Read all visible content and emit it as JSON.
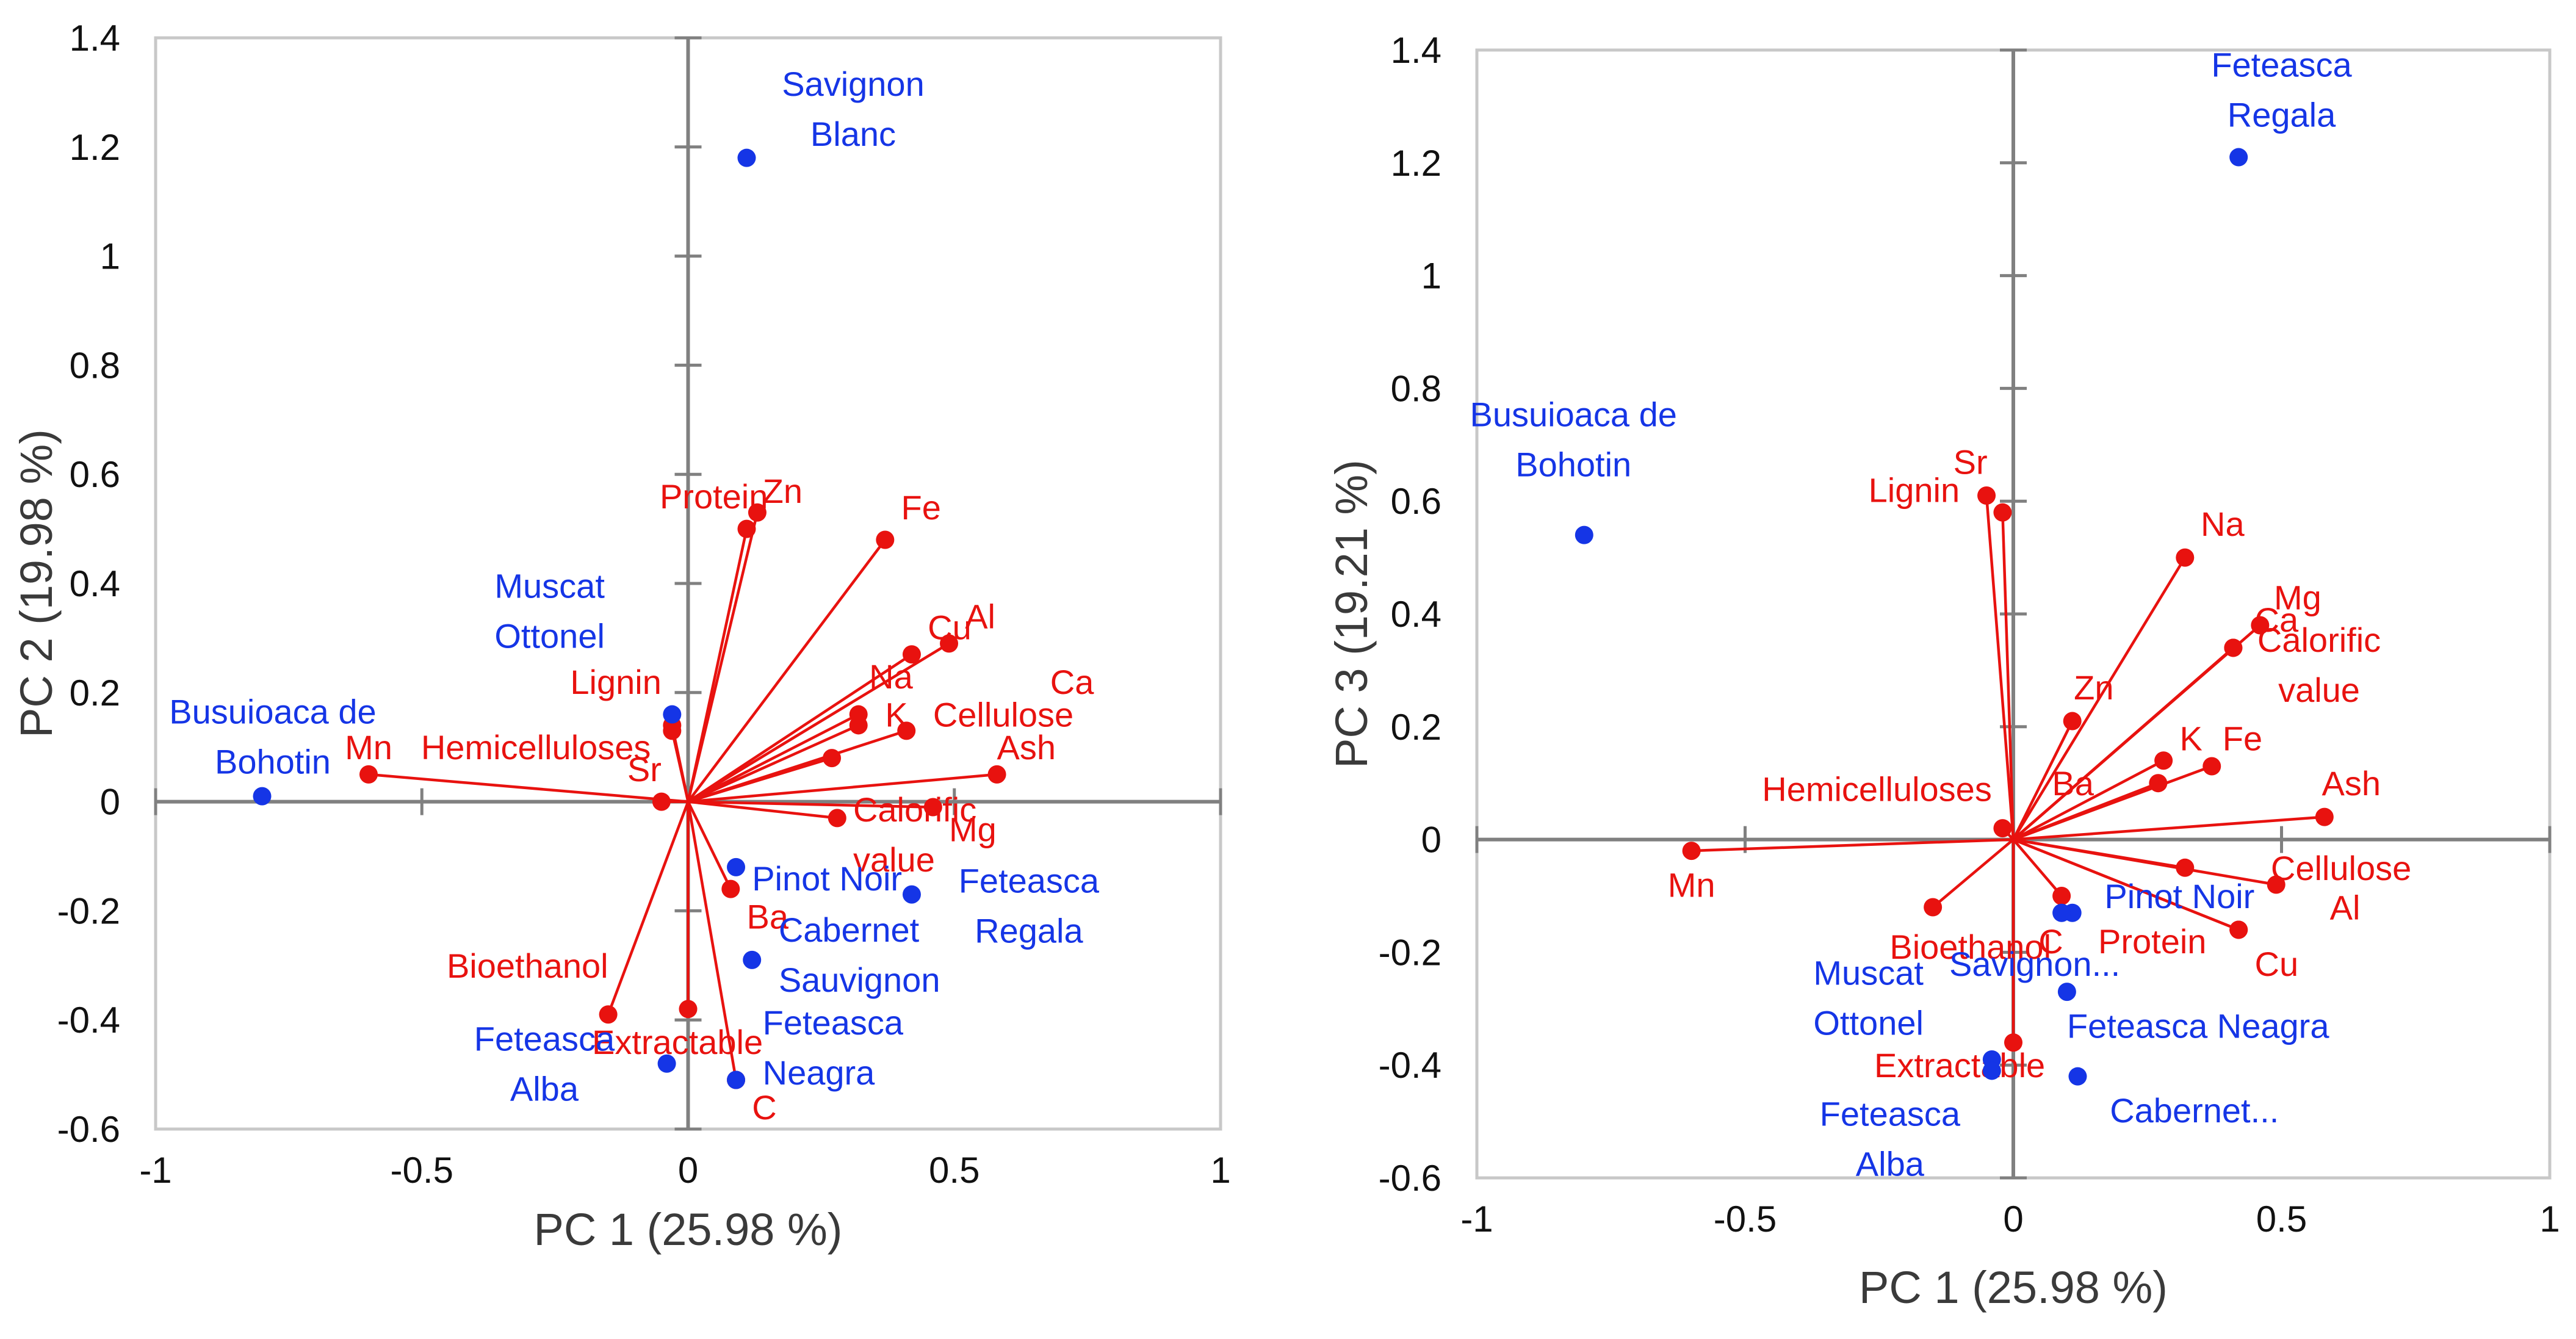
{
  "colors": {
    "variables": "#e8120f",
    "samples": "#1535e6",
    "axis": "#808080",
    "frame": "#c8c8c8"
  },
  "chart_data": [
    {
      "type": "scatter",
      "title": "",
      "xlabel": "PC 1 (25.98 %)",
      "ylabel": "PC 2 (19.98 %)",
      "xlim": [
        -1,
        1
      ],
      "ylim": [
        -0.6,
        1.4
      ],
      "xticks": [
        -1,
        -0.5,
        0,
        0.5,
        1
      ],
      "xtick_labels": [
        "-1",
        "-0.5",
        "0",
        "0.5",
        "1"
      ],
      "yticks": [
        -0.6,
        -0.4,
        -0.2,
        0,
        0.2,
        0.4,
        0.6,
        0.8,
        1,
        1.2,
        1.4
      ],
      "ytick_labels": [
        "-0.6",
        "-0.4",
        "-0.2",
        "0",
        "0.2",
        "0.4",
        "0.6",
        "0.8",
        "1",
        "1.2",
        "1.4"
      ],
      "variables": [
        {
          "name": "Protein",
          "lines": [
            "Protein"
          ],
          "x": 0.11,
          "y": 0.5,
          "label_anchor": "end",
          "label_dx": 0.04,
          "label_dy": 0.06
        },
        {
          "name": "Zn",
          "lines": [
            "Zn"
          ],
          "x": 0.13,
          "y": 0.53,
          "label_anchor": "start",
          "label_dx": 0.01,
          "label_dy": 0.04
        },
        {
          "name": "Fe",
          "lines": [
            "Fe"
          ],
          "x": 0.37,
          "y": 0.48,
          "label_anchor": "start",
          "label_dx": 0.03,
          "label_dy": 0.06
        },
        {
          "name": "Al",
          "lines": [
            "Al"
          ],
          "x": 0.49,
          "y": 0.29,
          "label_anchor": "start",
          "label_dx": 0.03,
          "label_dy": 0.05
        },
        {
          "name": "Cu",
          "lines": [
            "Cu"
          ],
          "x": 0.42,
          "y": 0.27,
          "label_anchor": "start",
          "label_dx": 0.03,
          "label_dy": 0.05
        },
        {
          "name": "Na",
          "lines": [
            "Na"
          ],
          "x": 0.32,
          "y": 0.14,
          "label_anchor": "start",
          "label_dx": 0.02,
          "label_dy": 0.09
        },
        {
          "name": "Ca",
          "lines": [
            "Ca"
          ],
          "x": 0.41,
          "y": 0.13,
          "label_anchor": "start",
          "label_dx": 0.27,
          "label_dy": 0.09
        },
        {
          "name": "Cellulose",
          "lines": [
            "Cellulose"
          ],
          "x": 0.32,
          "y": 0.16,
          "label_anchor": "start",
          "label_dx": 0.14,
          "label_dy": 0.0
        },
        {
          "name": "K",
          "lines": [
            "K"
          ],
          "x": 0.27,
          "y": 0.08,
          "label_anchor": "start",
          "label_dx": 0.1,
          "label_dy": 0.08
        },
        {
          "name": "Ash",
          "lines": [
            "Ash"
          ],
          "x": 0.58,
          "y": 0.05,
          "label_anchor": "start",
          "label_dx": 0.0,
          "label_dy": 0.05
        },
        {
          "name": "Calorific value",
          "lines": [
            "Calorific",
            "value"
          ],
          "x": 0.28,
          "y": -0.03,
          "label_anchor": "start",
          "label_dx": 0.03,
          "label_dy": -0.03
        },
        {
          "name": "Mg",
          "lines": [
            "Mg"
          ],
          "x": 0.46,
          "y": -0.01,
          "label_anchor": "start",
          "label_dx": 0.03,
          "label_dy": -0.04
        },
        {
          "name": "Ba",
          "lines": [
            "Ba"
          ],
          "x": 0.08,
          "y": -0.16,
          "label_anchor": "start",
          "label_dx": 0.03,
          "label_dy": -0.05
        },
        {
          "name": "Extractable",
          "lines": [
            "Extractable"
          ],
          "x": 0.0,
          "y": -0.38,
          "label_anchor": "middle",
          "label_dx": -0.02,
          "label_dy": -0.06
        },
        {
          "name": "C",
          "lines": [
            "C"
          ],
          "x": 0.09,
          "y": -0.51,
          "label_anchor": "start",
          "label_dx": 0.03,
          "label_dy": -0.05
        },
        {
          "name": "Bioethanol",
          "lines": [
            "Bioethanol"
          ],
          "x": -0.15,
          "y": -0.39,
          "label_anchor": "end",
          "label_dx": 0.0,
          "label_dy": 0.09
        },
        {
          "name": "Sr",
          "lines": [
            "Sr"
          ],
          "x": -0.05,
          "y": 0.0,
          "label_anchor": "end",
          "label_dx": 0.0,
          "label_dy": 0.06
        },
        {
          "name": "Hemicelluloses",
          "lines": [
            "Hemicelluloses"
          ],
          "x": -0.03,
          "y": 0.13,
          "label_anchor": "end",
          "label_dx": -0.04,
          "label_dy": -0.03
        },
        {
          "name": "Lignin",
          "lines": [
            "Lignin"
          ],
          "x": -0.03,
          "y": 0.14,
          "label_anchor": "end",
          "label_dx": -0.02,
          "label_dy": 0.08
        },
        {
          "name": "Mn",
          "lines": [
            "Mn"
          ],
          "x": -0.6,
          "y": 0.05,
          "label_anchor": "middle",
          "label_dx": 0.0,
          "label_dy": 0.05
        }
      ],
      "samples": [
        {
          "name": "Savignon Blanc",
          "lines": [
            "Savignon",
            "Blanc"
          ],
          "x": 0.11,
          "y": 1.18,
          "label_anchor": "middle",
          "label_dx": 0.2,
          "label_dy": 0.09
        },
        {
          "name": "Muscat Ottonel",
          "lines": [
            "Muscat",
            "Ottonel"
          ],
          "x": -0.03,
          "y": 0.16,
          "label_anchor": "middle",
          "label_dx": -0.23,
          "label_dy": 0.19
        },
        {
          "name": "Busuioaca de Bohotin",
          "lines": [
            "Busuioaca de",
            "Bohotin"
          ],
          "x": -0.8,
          "y": 0.01,
          "label_anchor": "middle",
          "label_dx": 0.02,
          "label_dy": 0.11
        },
        {
          "name": "Pinot Noir",
          "lines": [
            "Pinot Noir"
          ],
          "x": 0.09,
          "y": -0.12,
          "label_anchor": "start",
          "label_dx": 0.03,
          "label_dy": -0.02
        },
        {
          "name": "Cabernet Sauvignon",
          "lines": [
            "Cabernet",
            "Sauvignon"
          ],
          "x": 0.12,
          "y": -0.29,
          "label_anchor": "start",
          "label_dx": 0.05,
          "label_dy": 0.01
        },
        {
          "name": "Feteasca Regala",
          "lines": [
            "Feteasca",
            "Regala"
          ],
          "x": 0.42,
          "y": -0.17,
          "label_anchor": "middle",
          "label_dx": 0.22,
          "label_dy": -0.02
        },
        {
          "name": "Feteasca Neagra",
          "lines": [
            "Feteasca",
            "Neagra"
          ],
          "x": 0.09,
          "y": -0.51,
          "label_anchor": "start",
          "label_dx": 0.05,
          "label_dy": 0.06
        },
        {
          "name": "Feteasca Alba",
          "lines": [
            "Feteasca",
            "Alba"
          ],
          "x": -0.04,
          "y": -0.48,
          "label_anchor": "middle",
          "label_dx": -0.23,
          "label_dy": 0.0
        }
      ]
    },
    {
      "type": "scatter",
      "title": "",
      "xlabel": "PC 1 (25.98 %)",
      "ylabel": "PC 3 (19.21 %)",
      "xlim": [
        -1,
        1
      ],
      "ylim": [
        -0.6,
        1.4
      ],
      "xticks": [
        -1,
        -0.5,
        0,
        0.5,
        1
      ],
      "xtick_labels": [
        "-1",
        "-0.5",
        "0",
        "0.5",
        "1"
      ],
      "yticks": [
        -0.6,
        -0.4,
        -0.2,
        0,
        0.2,
        0.4,
        0.6,
        0.8,
        1,
        1.2,
        1.4
      ],
      "ytick_labels": [
        "-0.6",
        "-0.4",
        "-0.2",
        "0",
        "0.2",
        "0.4",
        "0.6",
        "0.8",
        "1",
        "1.2",
        "1.4"
      ],
      "variables": [
        {
          "name": "Sr",
          "lines": [
            "Sr"
          ],
          "x": -0.05,
          "y": 0.61,
          "label_anchor": "middle",
          "label_dx": -0.03,
          "label_dy": 0.06
        },
        {
          "name": "Lignin",
          "lines": [
            "Lignin"
          ],
          "x": -0.02,
          "y": 0.58,
          "label_anchor": "end",
          "label_dx": -0.08,
          "label_dy": 0.04
        },
        {
          "name": "Na",
          "lines": [
            "Na"
          ],
          "x": 0.32,
          "y": 0.5,
          "label_anchor": "middle",
          "label_dx": 0.07,
          "label_dy": 0.06
        },
        {
          "name": "Mg",
          "lines": [
            "Mg"
          ],
          "x": 0.46,
          "y": 0.38,
          "label_anchor": "middle",
          "label_dx": 0.07,
          "label_dy": 0.05
        },
        {
          "name": "Ca",
          "lines": [
            "Ca"
          ],
          "x": 0.41,
          "y": 0.34,
          "label_anchor": "start",
          "label_dx": 0.04,
          "label_dy": 0.05
        },
        {
          "name": "Calorific value",
          "lines": [
            "Calorific",
            "value"
          ],
          "x": 0.41,
          "y": 0.34,
          "label_anchor": "middle",
          "label_dx": 0.16,
          "label_dy": -0.03
        },
        {
          "name": "Zn",
          "lines": [
            "Zn"
          ],
          "x": 0.11,
          "y": 0.21,
          "label_anchor": "middle",
          "label_dx": 0.04,
          "label_dy": 0.06
        },
        {
          "name": "Fe",
          "lines": [
            "Fe"
          ],
          "x": 0.37,
          "y": 0.13,
          "label_anchor": "start",
          "label_dx": 0.02,
          "label_dy": 0.05
        },
        {
          "name": "K",
          "lines": [
            "K"
          ],
          "x": 0.28,
          "y": 0.14,
          "label_anchor": "start",
          "label_dx": 0.03,
          "label_dy": 0.04
        },
        {
          "name": "Ba",
          "lines": [
            "Ba"
          ],
          "x": 0.27,
          "y": 0.1,
          "label_anchor": "end",
          "label_dx": -0.12,
          "label_dy": 0.0
        },
        {
          "name": "Ash",
          "lines": [
            "Ash"
          ],
          "x": 0.58,
          "y": 0.04,
          "label_anchor": "middle",
          "label_dx": 0.05,
          "label_dy": 0.06
        },
        {
          "name": "Hemicelluloses",
          "lines": [
            "Hemicelluloses"
          ],
          "x": -0.02,
          "y": 0.02,
          "label_anchor": "end",
          "label_dx": -0.02,
          "label_dy": 0.07
        },
        {
          "name": "Mn",
          "lines": [
            "Mn"
          ],
          "x": -0.6,
          "y": -0.02,
          "label_anchor": "middle",
          "label_dx": 0.0,
          "label_dy": -0.06
        },
        {
          "name": "Cellulose",
          "lines": [
            "Cellulose"
          ],
          "x": 0.32,
          "y": -0.05,
          "label_anchor": "start",
          "label_dx": 0.16,
          "label_dy": 0.0
        },
        {
          "name": "Al",
          "lines": [
            "Al"
          ],
          "x": 0.49,
          "y": -0.08,
          "label_anchor": "start",
          "label_dx": 0.1,
          "label_dy": -0.04
        },
        {
          "name": "Protein",
          "lines": [
            "Protein"
          ],
          "x": 0.42,
          "y": -0.16,
          "label_anchor": "end",
          "label_dx": -0.06,
          "label_dy": -0.02
        },
        {
          "name": "Cu",
          "lines": [
            "Cu"
          ],
          "x": 0.42,
          "y": -0.16,
          "label_anchor": "start",
          "label_dx": 0.03,
          "label_dy": -0.06
        },
        {
          "name": "C",
          "lines": [
            "C"
          ],
          "x": 0.09,
          "y": -0.1,
          "label_anchor": "middle",
          "label_dx": -0.02,
          "label_dy": -0.08
        },
        {
          "name": "Bioethanol",
          "lines": [
            "Bioethanol"
          ],
          "x": -0.15,
          "y": -0.12,
          "label_anchor": "middle",
          "label_dx": 0.07,
          "label_dy": -0.07
        },
        {
          "name": "Extractable",
          "lines": [
            "Extractable"
          ],
          "x": 0.0,
          "y": -0.36,
          "label_anchor": "middle",
          "label_dx": -0.1,
          "label_dy": -0.04
        }
      ],
      "samples": [
        {
          "name": "Feteasca Regala",
          "lines": [
            "Feteasca",
            "Regala"
          ],
          "x": 0.42,
          "y": 1.21,
          "label_anchor": "middle",
          "label_dx": 0.08,
          "label_dy": 0.12
        },
        {
          "name": "Busuioaca de Bohotin",
          "lines": [
            "Busuioaca de",
            "Bohotin"
          ],
          "x": -0.8,
          "y": 0.54,
          "label_anchor": "middle",
          "label_dx": -0.02,
          "label_dy": 0.17
        },
        {
          "name": "Pinot Noir",
          "lines": [
            "Pinot Noir"
          ],
          "x": 0.11,
          "y": -0.13,
          "label_anchor": "start",
          "label_dx": 0.06,
          "label_dy": 0.03
        },
        {
          "name": "Savignon...",
          "lines": [
            "Savignon..."
          ],
          "x": 0.09,
          "y": -0.13,
          "label_anchor": "middle",
          "label_dx": -0.05,
          "label_dy": -0.09
        },
        {
          "name": "Feteasca Neagra",
          "lines": [
            "Feteasca Neagra"
          ],
          "x": 0.1,
          "y": -0.27,
          "label_anchor": "start",
          "label_dx": 0.0,
          "label_dy": -0.06
        },
        {
          "name": "Cabernet...",
          "lines": [
            "Cabernet..."
          ],
          "x": 0.12,
          "y": -0.42,
          "label_anchor": "start",
          "label_dx": 0.06,
          "label_dy": -0.06
        },
        {
          "name": "Muscat Ottonel",
          "lines": [
            "Muscat",
            "Ottonel"
          ],
          "x": -0.04,
          "y": -0.39,
          "label_anchor": "middle",
          "label_dx": -0.23,
          "label_dy": 0.11
        },
        {
          "name": "Feteasca Alba",
          "lines": [
            "Feteasca",
            "Alba"
          ],
          "x": -0.04,
          "y": -0.41,
          "label_anchor": "middle",
          "label_dx": -0.19,
          "label_dy": -0.12
        }
      ]
    }
  ]
}
